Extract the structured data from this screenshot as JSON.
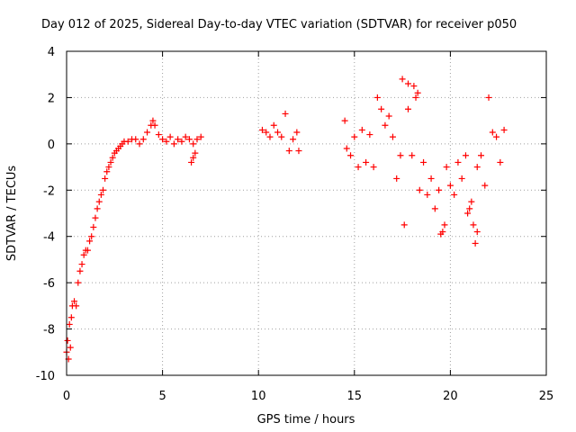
{
  "chart_data": {
    "type": "scatter",
    "title": "Day 012 of 2025, Sidereal Day-to-day VTEC variation (SDTVAR) for receiver p050",
    "xlabel": "GPS time / hours",
    "ylabel": "SDTVAR / TECUs",
    "xlim": [
      0,
      25
    ],
    "ylim": [
      -10,
      4
    ],
    "xticks": [
      0,
      5,
      10,
      15,
      20,
      25
    ],
    "yticks": [
      -10,
      -8,
      -6,
      -4,
      -2,
      0,
      2,
      4
    ],
    "grid": true,
    "marker": "plus",
    "color": "#ff0000",
    "series": [
      {
        "name": "SDTVAR",
        "x": [
          0.0,
          0.05,
          0.1,
          0.15,
          0.2,
          0.25,
          0.3,
          0.4,
          0.5,
          0.6,
          0.7,
          0.8,
          0.9,
          1.0,
          1.1,
          1.2,
          1.3,
          1.4,
          1.5,
          1.6,
          1.7,
          1.8,
          1.9,
          2.0,
          2.1,
          2.2,
          2.3,
          2.4,
          2.5,
          2.6,
          2.7,
          2.8,
          2.9,
          3.0,
          3.2,
          3.4,
          3.6,
          3.8,
          4.0,
          4.2,
          4.4,
          4.5,
          4.6,
          4.8,
          5.0,
          5.2,
          5.4,
          5.6,
          5.8,
          6.0,
          6.2,
          6.4,
          6.6,
          6.8,
          7.0,
          6.5,
          6.6,
          6.7,
          10.2,
          10.4,
          10.6,
          10.8,
          11.0,
          11.2,
          11.4,
          11.6,
          11.8,
          12.0,
          12.1,
          14.5,
          14.6,
          14.8,
          15.0,
          15.2,
          15.4,
          15.6,
          15.8,
          16.0,
          16.2,
          16.4,
          16.6,
          16.8,
          17.0,
          17.2,
          17.4,
          17.6,
          17.8,
          18.0,
          18.2,
          18.4,
          18.6,
          18.8,
          19.0,
          19.2,
          19.4,
          19.6,
          19.8,
          20.0,
          20.2,
          20.4,
          20.6,
          20.8,
          21.0,
          21.2,
          21.4,
          21.6,
          21.8,
          22.0,
          22.2,
          22.4,
          22.6,
          22.8,
          17.5,
          17.8,
          18.1,
          18.3,
          19.5,
          19.7,
          20.9,
          21.3,
          21.4,
          21.1
        ],
        "y": [
          -9.0,
          -8.5,
          -9.3,
          -7.8,
          -8.8,
          -7.5,
          -7.0,
          -6.8,
          -7.0,
          -6.0,
          -5.5,
          -5.2,
          -4.8,
          -4.6,
          -4.6,
          -4.2,
          -4.0,
          -3.6,
          -3.2,
          -2.8,
          -2.5,
          -2.2,
          -2.0,
          -1.5,
          -1.2,
          -1.0,
          -0.8,
          -0.6,
          -0.4,
          -0.3,
          -0.2,
          -0.1,
          0.0,
          0.1,
          0.1,
          0.2,
          0.2,
          0.0,
          0.2,
          0.5,
          0.8,
          1.0,
          0.8,
          0.4,
          0.2,
          0.1,
          0.3,
          0.0,
          0.2,
          0.1,
          0.3,
          0.2,
          0.0,
          0.2,
          0.3,
          -0.8,
          -0.6,
          -0.4,
          0.6,
          0.5,
          0.3,
          0.8,
          0.5,
          0.3,
          1.3,
          -0.3,
          0.2,
          0.5,
          -0.3,
          1.0,
          -0.2,
          -0.5,
          0.3,
          -1.0,
          0.6,
          -0.8,
          0.4,
          -1.0,
          2.0,
          1.5,
          0.8,
          1.2,
          0.3,
          -1.5,
          -0.5,
          -3.5,
          1.5,
          -0.5,
          2.0,
          -2.0,
          -0.8,
          -2.2,
          -1.5,
          -2.8,
          -2.0,
          -3.8,
          -1.0,
          -1.8,
          -2.2,
          -0.8,
          -1.5,
          -0.5,
          -2.8,
          -3.5,
          -1.0,
          -0.5,
          -1.8,
          2.0,
          0.5,
          0.3,
          -0.8,
          0.6,
          2.8,
          2.6,
          2.5,
          2.2,
          -3.9,
          -3.5,
          -3.0,
          -4.3,
          -3.8,
          -2.5
        ]
      }
    ]
  }
}
